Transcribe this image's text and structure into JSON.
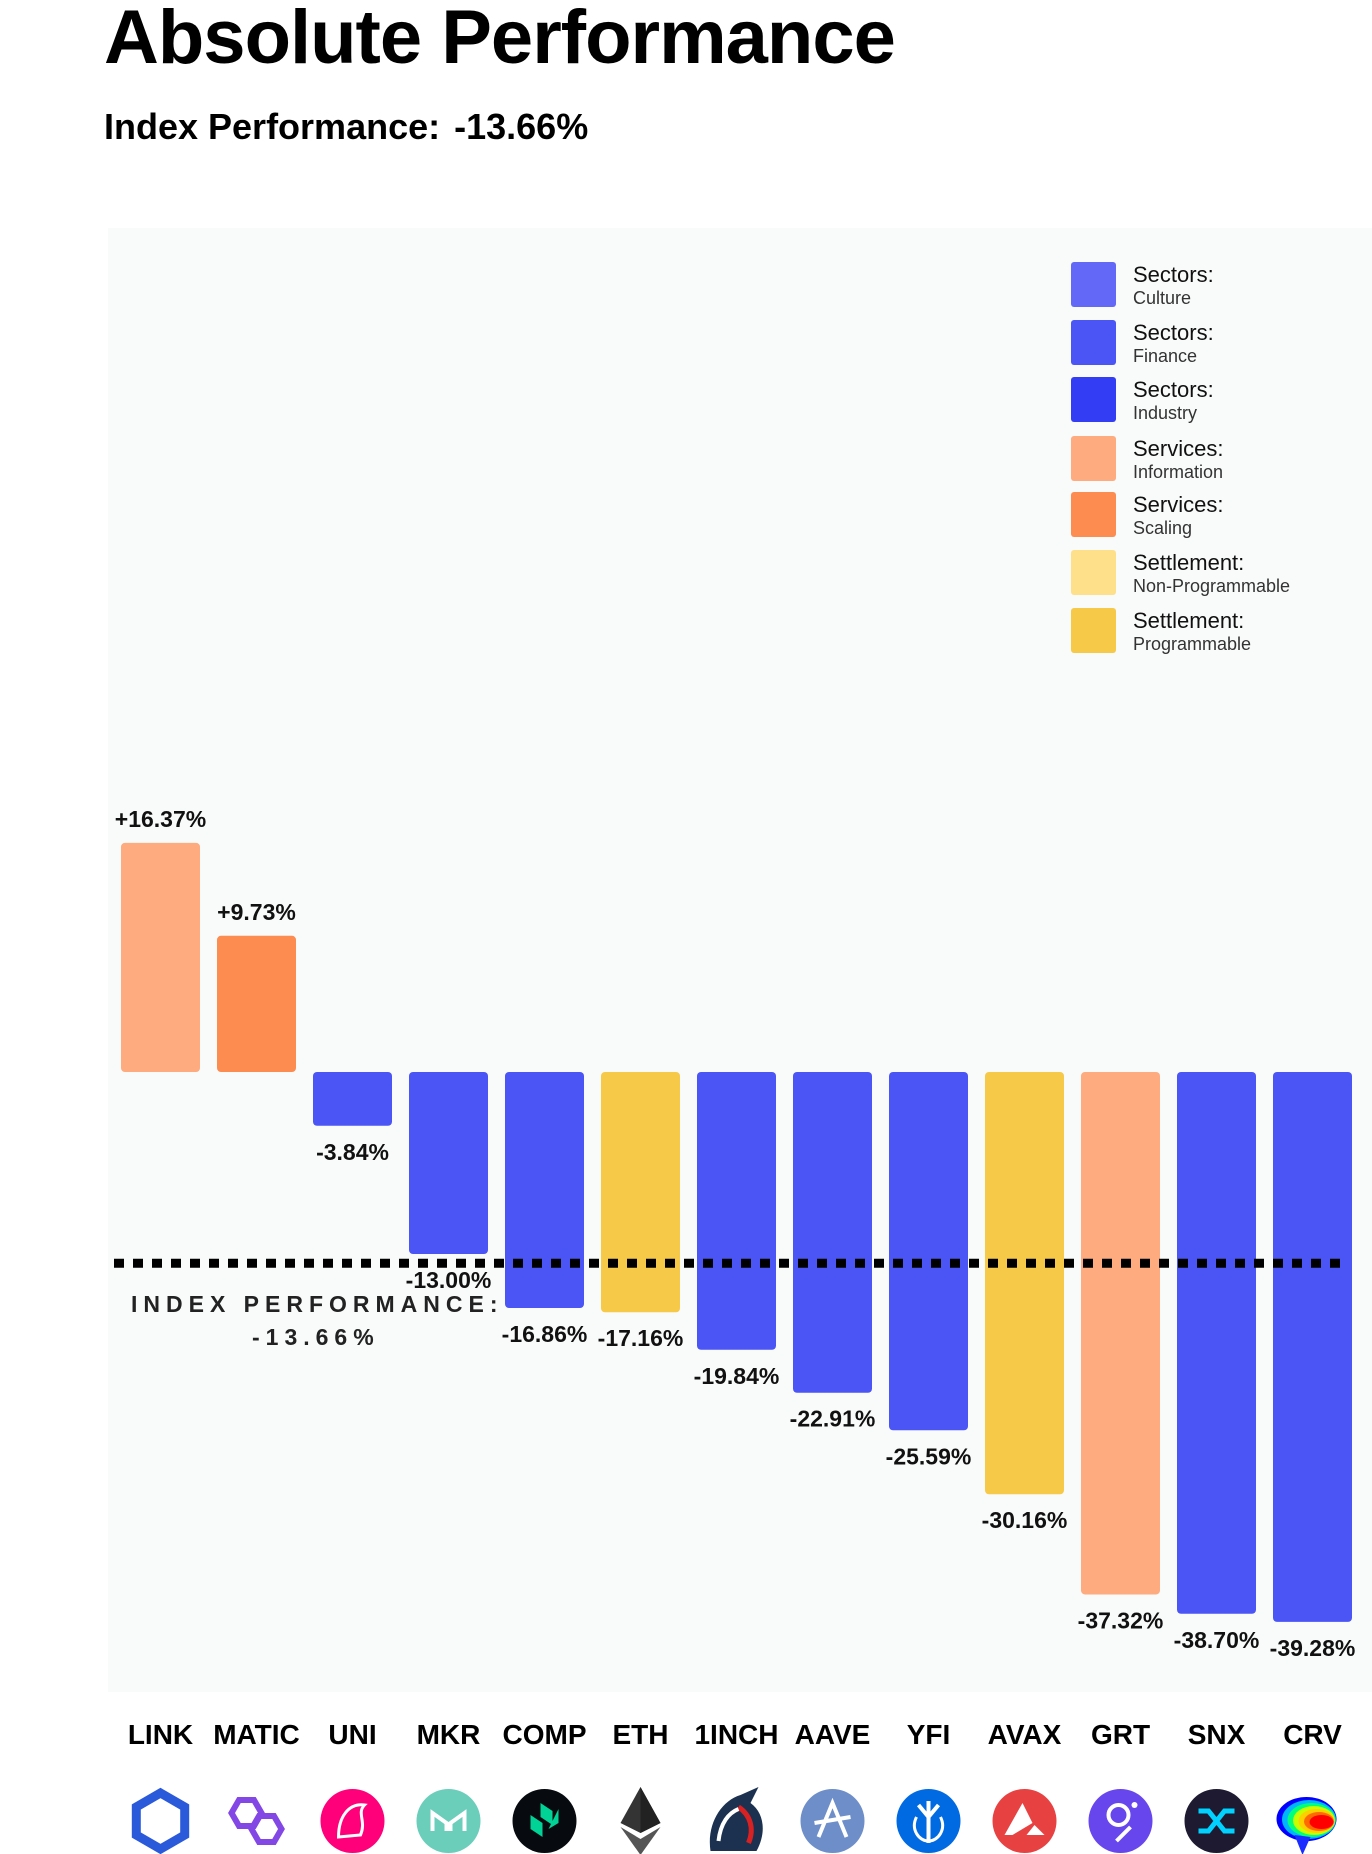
{
  "header": {
    "title": "Absolute Performance",
    "subtitle_label": "Index Performance:",
    "subtitle_value": "-13.66%"
  },
  "legend": [
    {
      "category": "Sectors:",
      "sub": "Culture",
      "color": "#6368f7"
    },
    {
      "category": "Sectors:",
      "sub": "Finance",
      "color": "#4b55f5"
    },
    {
      "category": "Sectors:",
      "sub": "Industry",
      "color": "#333df3"
    },
    {
      "category": "Services:",
      "sub": "Information",
      "color": "#fdab7f"
    },
    {
      "category": "Services:",
      "sub": "Scaling",
      "color": "#fd8c51"
    },
    {
      "category": "Settlement:",
      "sub": "Non-Programmable",
      "color": "#fee08b"
    },
    {
      "category": "Settlement:",
      "sub": "Programmable",
      "color": "#f7c948"
    }
  ],
  "chart_data": {
    "type": "bar",
    "title": "Absolute Performance",
    "categories": [
      "LINK",
      "MATIC",
      "UNI",
      "MKR",
      "COMP",
      "ETH",
      "1INCH",
      "AAVE",
      "YFI",
      "AVAX",
      "GRT",
      "SNX",
      "CRV"
    ],
    "values": [
      16.37,
      9.73,
      -3.84,
      -13.0,
      -16.86,
      -17.16,
      -19.84,
      -22.91,
      -25.59,
      -30.16,
      -37.32,
      -38.7,
      -39.28
    ],
    "value_labels": [
      "+16.37%",
      "+9.73%",
      "-3.84%",
      "-13.00%",
      "-16.86%",
      "-17.16%",
      "-19.84%",
      "-22.91%",
      "-25.59%",
      "-30.16%",
      "-37.32%",
      "-38.70%",
      "-39.28%"
    ],
    "colors": [
      "#fdab7f",
      "#fd8c51",
      "#4b55f5",
      "#4b55f5",
      "#4b55f5",
      "#f7c948",
      "#4b55f5",
      "#4b55f5",
      "#4b55f5",
      "#f7c948",
      "#fdab7f",
      "#4b55f5",
      "#4b55f5"
    ],
    "icons": [
      "chainlink-icon",
      "polygon-icon",
      "uniswap-icon",
      "maker-icon",
      "compound-icon",
      "ethereum-icon",
      "1inch-icon",
      "aave-icon",
      "yearn-icon",
      "avalanche-icon",
      "graph-icon",
      "synthetix-icon",
      "curve-icon"
    ],
    "reference_line": {
      "value": -13.66,
      "label_line1": "INDEX PERFORMANCE:",
      "label_line2": "-13.66%"
    },
    "xlabel": "",
    "ylabel": "",
    "grid": false,
    "legend_position": "top-right"
  }
}
